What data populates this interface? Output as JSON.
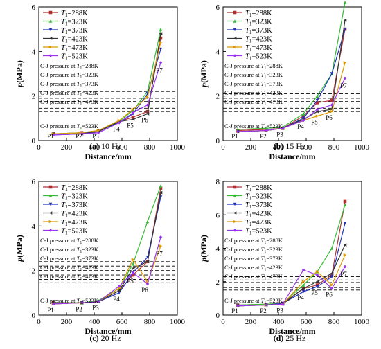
{
  "figure": {
    "legend_labels": [
      "T",
      "1",
      "=288K",
      "T",
      "1",
      "=323K"
    ],
    "x_axis_label": "Distance/mm",
    "y_axis_label": "p(MPa)"
  },
  "chart_data": [
    {
      "type": "line",
      "caption": "(a) 10 Hz",
      "xlabel": "Distance/mm",
      "ylabel": "p(MPa)",
      "xlim": [
        0,
        1000
      ],
      "ylim": [
        0,
        6
      ],
      "x_ticks": [
        0,
        200,
        400,
        600,
        800,
        1000
      ],
      "y_ticks": [
        0,
        2,
        4,
        6
      ],
      "legend_position": "top-left",
      "x": [
        105,
        310,
        430,
        580,
        680,
        785,
        880
      ],
      "point_labels": [
        "P1",
        "P2",
        "P3",
        "P4",
        "P5",
        "P6",
        "P7"
      ],
      "series": [
        {
          "name": "T1=288K",
          "color": "#b03030",
          "marker": "square",
          "values": [
            0.3,
            0.35,
            0.45,
            0.85,
            1.05,
            1.3,
            4.6
          ]
        },
        {
          "name": "T1=323K",
          "color": "#33bb33",
          "marker": "triangle",
          "values": [
            0.3,
            0.35,
            0.45,
            0.85,
            1.35,
            2.2,
            5.0
          ]
        },
        {
          "name": "T1=373K",
          "color": "#2233bb",
          "marker": "tri-down",
          "values": [
            0.25,
            0.3,
            0.45,
            0.8,
            1.2,
            2.1,
            4.1
          ]
        },
        {
          "name": "T1=423K",
          "color": "#333333",
          "marker": "tri-left",
          "values": [
            0.3,
            0.3,
            0.4,
            0.85,
            0.95,
            1.2,
            4.8
          ]
        },
        {
          "name": "T1=473K",
          "color": "#dd9900",
          "marker": "tri-right",
          "values": [
            0.3,
            0.35,
            0.45,
            0.9,
            1.4,
            1.95,
            4.4
          ]
        },
        {
          "name": "T1=523K",
          "color": "#9933ee",
          "marker": "diamond",
          "values": [
            0.25,
            0.3,
            0.35,
            0.8,
            1.25,
            1.6,
            3.5
          ]
        }
      ],
      "cj_lines": [
        {
          "label": "C-J pressure at T1=288K",
          "value": 2.2
        },
        {
          "label": "C-J pressure at T1=323K",
          "value": 1.9
        },
        {
          "label": "C-J pressure at T1=373K",
          "value": 1.75
        },
        {
          "label": "C-J pressure at T1=423K",
          "value": 1.6
        },
        {
          "label": "C-J pressure at T1=473K",
          "value": 1.45
        },
        {
          "label": "C-J pressure at T1=523K",
          "value": 1.3
        }
      ]
    },
    {
      "type": "line",
      "caption": "(b) 15 Hz",
      "xlabel": "Distance/mm",
      "ylabel": "p(MPa)",
      "xlim": [
        0,
        1000
      ],
      "ylim": [
        0,
        6
      ],
      "x_ticks": [
        0,
        200,
        400,
        600,
        800,
        1000
      ],
      "y_ticks": [
        0,
        2,
        4,
        6
      ],
      "legend_position": "top-left",
      "x": [
        105,
        310,
        430,
        580,
        680,
        785,
        880
      ],
      "point_labels": [
        "P1",
        "P2",
        "P3",
        "P4",
        "P5",
        "P6",
        "P7"
      ],
      "series": [
        {
          "name": "T1=288K",
          "color": "#b03030",
          "marker": "square",
          "values": [
            0.45,
            0.5,
            0.55,
            1.1,
            1.7,
            1.8,
            5.0
          ]
        },
        {
          "name": "T1=323K",
          "color": "#33bb33",
          "marker": "triangle",
          "values": [
            0.5,
            0.55,
            0.6,
            1.2,
            2.0,
            3.0,
            6.2
          ]
        },
        {
          "name": "T1=373K",
          "color": "#2233bb",
          "marker": "tri-down",
          "values": [
            0.4,
            0.45,
            0.55,
            1.0,
            1.8,
            3.0,
            5.0
          ]
        },
        {
          "name": "T1=423K",
          "color": "#333333",
          "marker": "tri-left",
          "values": [
            0.4,
            0.45,
            0.55,
            0.95,
            1.3,
            1.4,
            5.4
          ]
        },
        {
          "name": "T1=473K",
          "color": "#dd9900",
          "marker": "tri-right",
          "values": [
            0.4,
            0.45,
            0.55,
            0.9,
            1.1,
            1.3,
            3.5
          ]
        },
        {
          "name": "T1=523K",
          "color": "#9933ee",
          "marker": "diamond",
          "values": [
            0.4,
            0.45,
            0.55,
            0.9,
            1.4,
            1.6,
            2.8
          ]
        }
      ],
      "cj_lines": [
        {
          "label": "C-J pressure at T1=288K",
          "value": 2.1
        },
        {
          "label": "C-J pressure at T1=323K",
          "value": 1.9
        },
        {
          "label": "C-J pressure at T1=373K",
          "value": 1.75
        },
        {
          "label": "C-J pressure at T1=423K",
          "value": 1.6
        },
        {
          "label": "C-J pressure at T1=473K",
          "value": 1.45
        },
        {
          "label": "C-J pressure at T1=523K",
          "value": 1.3
        }
      ]
    },
    {
      "type": "line",
      "caption": "(c) 20 Hz",
      "xlabel": "Distance/mm",
      "ylabel": "p(MPa)",
      "xlim": [
        0,
        1000
      ],
      "ylim": [
        0,
        6
      ],
      "x_ticks": [
        0,
        200,
        400,
        600,
        800,
        1000
      ],
      "y_ticks": [
        0,
        2,
        4,
        6
      ],
      "legend_position": "top-left",
      "x": [
        105,
        310,
        430,
        580,
        680,
        785,
        880
      ],
      "point_labels": [
        "P1",
        "P2",
        "P3",
        "P4",
        "P5",
        "P6",
        "P7"
      ],
      "series": [
        {
          "name": "T1=288K",
          "color": "#b03030",
          "marker": "square",
          "values": [
            0.55,
            0.55,
            0.6,
            1.1,
            1.8,
            2.4,
            5.7
          ]
        },
        {
          "name": "T1=323K",
          "color": "#33bb33",
          "marker": "triangle",
          "values": [
            0.55,
            0.55,
            0.65,
            1.2,
            2.3,
            4.2,
            5.8
          ]
        },
        {
          "name": "T1=373K",
          "color": "#2233bb",
          "marker": "tri-down",
          "values": [
            0.5,
            0.55,
            0.6,
            1.0,
            1.9,
            2.6,
            5.3
          ]
        },
        {
          "name": "T1=423K",
          "color": "#333333",
          "marker": "tri-left",
          "values": [
            0.5,
            0.55,
            0.6,
            1.1,
            2.1,
            2.4,
            5.5
          ]
        },
        {
          "name": "T1=473K",
          "color": "#dd9900",
          "marker": "tri-right",
          "values": [
            0.5,
            0.55,
            0.6,
            1.2,
            2.5,
            1.5,
            3.1
          ]
        },
        {
          "name": "T1=523K",
          "color": "#9933ee",
          "marker": "diamond",
          "values": [
            0.5,
            0.55,
            0.6,
            1.3,
            1.9,
            1.4,
            3.5
          ]
        }
      ],
      "cj_lines": [
        {
          "label": "C-J pressure at T1=288K",
          "value": 2.4
        },
        {
          "label": "C-J pressure at T1=323K",
          "value": 2.2
        },
        {
          "label": "C-J pressure at T1=373K",
          "value": 2.0
        },
        {
          "label": "C-J pressure at T1=423K",
          "value": 1.8
        },
        {
          "label": "C-J pressure at T1=473K",
          "value": 1.6
        },
        {
          "label": "C-J pressure at T1=523K",
          "value": 1.45
        }
      ]
    },
    {
      "type": "line",
      "caption": "(d) 25 Hz",
      "xlabel": "Distance/mm",
      "ylabel": "p(MPa)",
      "xlim": [
        0,
        1000
      ],
      "ylim": [
        0,
        8
      ],
      "x_ticks": [
        0,
        200,
        400,
        600,
        800,
        1000
      ],
      "y_ticks": [
        0,
        2,
        4,
        6,
        8
      ],
      "legend_position": "top-left",
      "x": [
        105,
        310,
        430,
        580,
        680,
        785,
        880
      ],
      "point_labels": [
        "P1",
        "P2",
        "P3",
        "P4",
        "P5",
        "P6",
        "P7"
      ],
      "series": [
        {
          "name": "T1=288K",
          "color": "#b03030",
          "marker": "square",
          "values": [
            0.6,
            0.65,
            0.7,
            1.6,
            1.8,
            2.4,
            6.8
          ]
        },
        {
          "name": "T1=323K",
          "color": "#33bb33",
          "marker": "triangle",
          "values": [
            0.6,
            0.65,
            0.7,
            1.8,
            2.6,
            4.0,
            6.6
          ]
        },
        {
          "name": "T1=373K",
          "color": "#2233bb",
          "marker": "tri-down",
          "values": [
            0.55,
            0.6,
            0.7,
            1.4,
            1.7,
            2.3,
            5.5
          ]
        },
        {
          "name": "T1=423K",
          "color": "#333333",
          "marker": "tri-left",
          "values": [
            0.55,
            0.6,
            0.65,
            1.6,
            2.0,
            2.5,
            4.2
          ]
        },
        {
          "name": "T1=473K",
          "color": "#dd9900",
          "marker": "tri-right",
          "values": [
            0.55,
            0.6,
            0.65,
            2.0,
            2.6,
            1.8,
            3.6
          ]
        },
        {
          "name": "T1=523K",
          "color": "#9933ee",
          "marker": "diamond",
          "values": [
            0.55,
            0.6,
            0.65,
            2.7,
            2.4,
            1.6,
            2.9
          ]
        }
      ],
      "cj_lines": [
        {
          "label": "C-J pressure at T1=288K",
          "value": 2.3
        },
        {
          "label": "C-J pressure at T1=323K",
          "value": 2.1
        },
        {
          "label": "C-J pressure at T1=373K",
          "value": 1.95
        },
        {
          "label": "C-J pressure at T1=423K",
          "value": 1.8
        },
        {
          "label": "C-J pressure at T1=473K",
          "value": 1.65
        },
        {
          "label": "C-J pressure at T1=523K",
          "value": 1.5
        }
      ]
    }
  ]
}
